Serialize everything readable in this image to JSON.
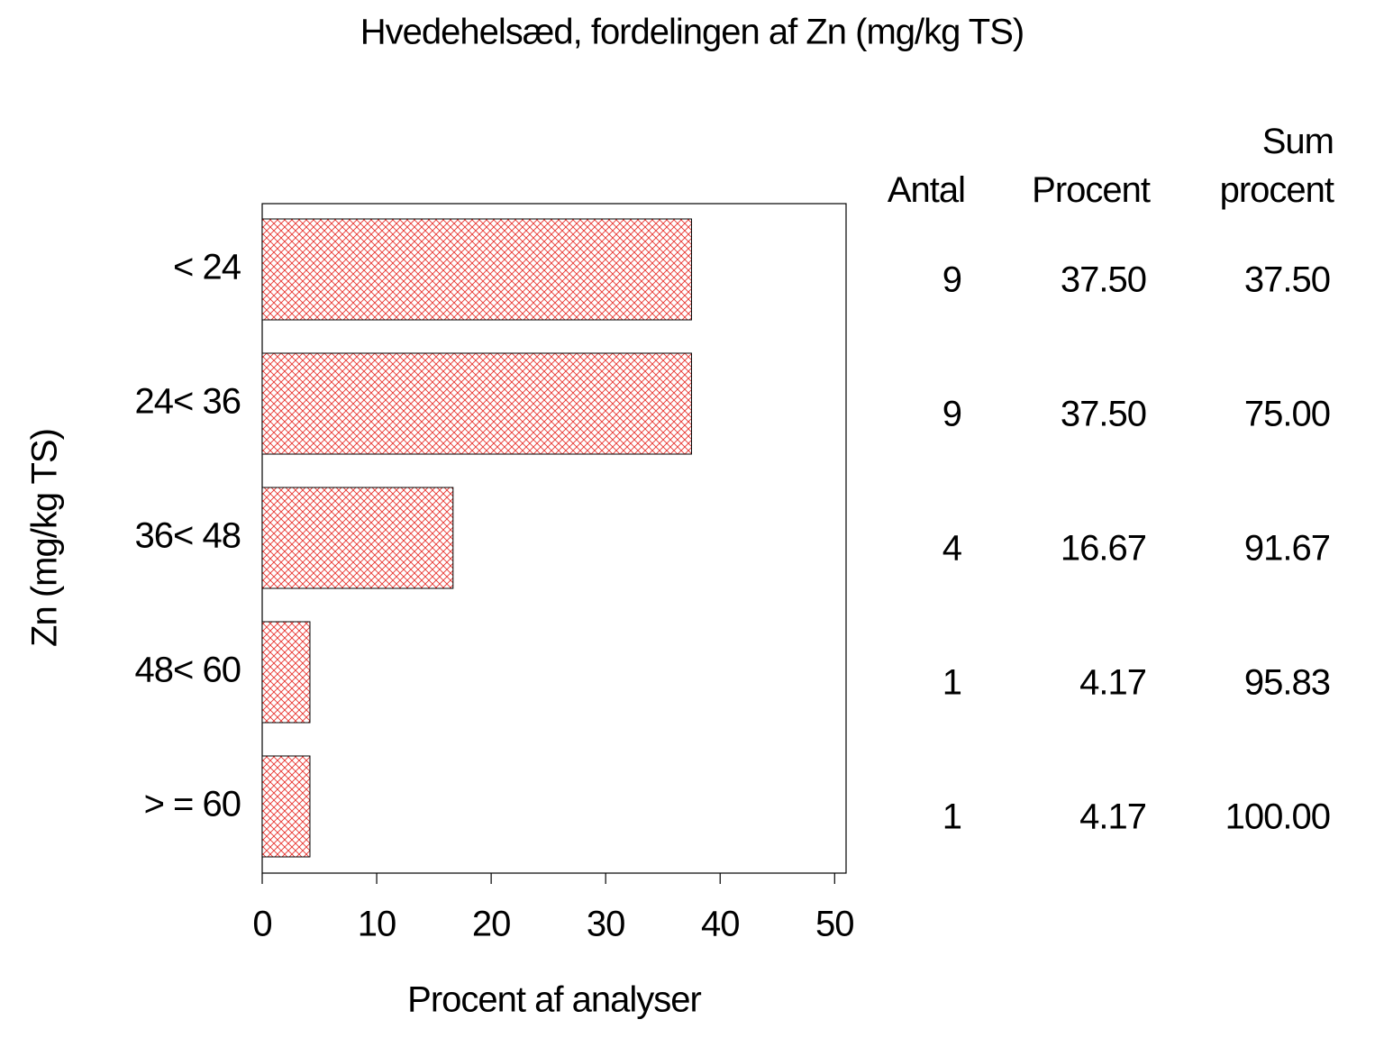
{
  "chart_data": {
    "type": "hbar",
    "title": "Hvedehelsæd, fordelingen af Zn (mg/kg TS)",
    "x_label": "Procent af analyser",
    "y_label": "Zn (mg/kg TS)",
    "categories": [
      "< 24",
      "24< 36",
      "36< 48",
      "48< 60",
      "> = 60"
    ],
    "values": [
      37.5,
      37.5,
      16.67,
      4.17,
      4.17
    ],
    "value_labels": [
      "37.50",
      "37.50",
      "16.67",
      "4.17",
      "4.17"
    ],
    "color": "#e8332e",
    "xlim": [
      0,
      51
    ],
    "xticks": [
      0,
      10,
      20,
      30,
      40,
      50
    ],
    "table": {
      "columns": [
        "Antal",
        "Procent",
        "Sum procent"
      ],
      "counts": [
        9,
        9,
        4,
        1,
        1
      ],
      "cumulative_percent": [
        "37.50",
        "75.00",
        "91.67",
        "95.83",
        "100.00"
      ]
    }
  }
}
